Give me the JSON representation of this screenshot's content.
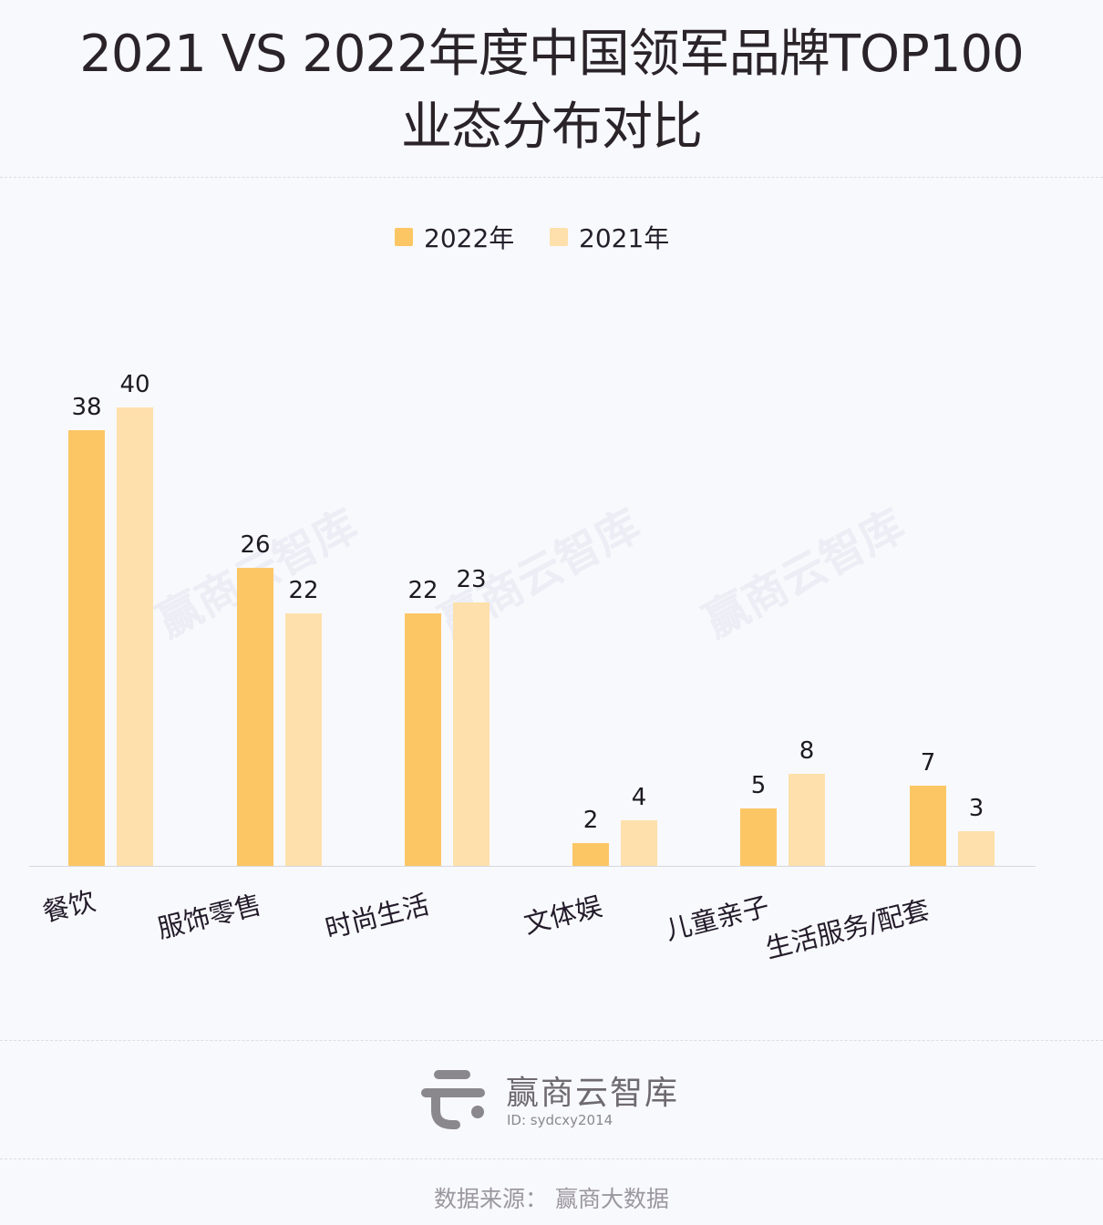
{
  "header": {
    "title_line1": "2021 VS 2022年度中国领军品牌TOP100",
    "title_line2": "业态分布对比"
  },
  "legend": {
    "items": [
      {
        "label": "2022年",
        "color": "#fdc665"
      },
      {
        "label": "2021年",
        "color": "#fde0ab"
      }
    ]
  },
  "chart_data": {
    "type": "bar",
    "title": "2021 VS 2022年度中国领军品牌TOP100 业态分布对比",
    "xlabel": "",
    "ylabel": "",
    "categories": [
      "餐饮",
      "服饰零售",
      "时尚生活",
      "文体娱",
      "儿童亲子",
      "生活服务/配套"
    ],
    "series": [
      {
        "name": "2022年",
        "color": "#fdc665",
        "values": [
          38,
          26,
          22,
          2,
          5,
          7
        ]
      },
      {
        "name": "2021年",
        "color": "#fde0ab",
        "values": [
          40,
          22,
          23,
          4,
          8,
          3
        ]
      }
    ],
    "ylim": [
      0,
      40
    ],
    "grid": false,
    "legend_position": "top",
    "data_labels": true
  },
  "watermark": {
    "text": "赢商云智库"
  },
  "footer": {
    "brand_name": "赢商云智库",
    "brand_id": "ID: sydcxy2014",
    "source": "数据来源：  赢商大数据"
  }
}
